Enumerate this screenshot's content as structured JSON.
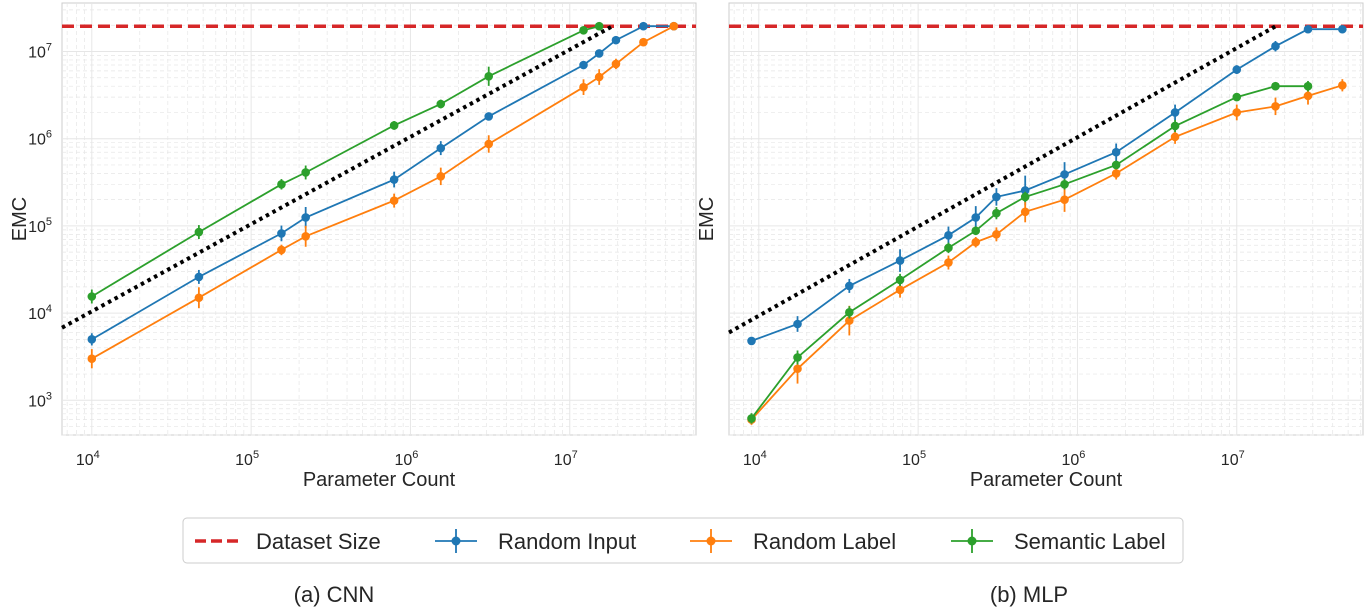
{
  "colors": {
    "dataset": "#d62728",
    "random_input": "#1f77b4",
    "random_label": "#ff7f0e",
    "semantic_label": "#2ca02c",
    "reference": "#000000",
    "grid": "#e6e6e6",
    "frame": "#cccccc"
  },
  "legend": {
    "dataset_size": "Dataset Size",
    "random_input": "Random Input",
    "random_label": "Random Label",
    "semantic_label": "Semantic Label"
  },
  "chart_data": [
    {
      "type": "line",
      "caption": "(a) CNN",
      "xlabel": "Parameter Count",
      "ylabel": "EMC",
      "x_scale": "log",
      "y_scale": "log",
      "xlim": [
        6500,
        62000000
      ],
      "ylim": [
        400,
        36000000
      ],
      "xticks": [
        {
          "value": 10000,
          "mant": "10",
          "exp": "4"
        },
        {
          "value": 100000,
          "mant": "10",
          "exp": "5"
        },
        {
          "value": 1000000,
          "mant": "10",
          "exp": "6"
        },
        {
          "value": 10000000,
          "mant": "10",
          "exp": "7"
        }
      ],
      "yticks": [
        {
          "value": 1000,
          "mant": "10",
          "exp": "3"
        },
        {
          "value": 10000,
          "mant": "10",
          "exp": "4"
        },
        {
          "value": 100000,
          "mant": "10",
          "exp": "5"
        },
        {
          "value": 1000000,
          "mant": "10",
          "exp": "6"
        },
        {
          "value": 10000000,
          "mant": "10",
          "exp": "7"
        }
      ],
      "dataset_size": 19500000,
      "reference_line": [
        [
          6500,
          6800
        ],
        [
          19000000,
          20000000
        ]
      ],
      "series": [
        {
          "name": "Random Input",
          "x": [
            10000,
            47000,
            155000,
            220000,
            790000,
            1550000,
            3100000,
            12200000,
            15300000,
            19500000,
            29000000,
            45000000
          ],
          "y": [
            5000,
            26000,
            82000,
            125000,
            340000,
            780000,
            1800000,
            7000000,
            9500000,
            13500000,
            19500000,
            19500000
          ],
          "err": [
            0.07,
            0.08,
            0.09,
            0.12,
            0.09,
            0.08,
            0.03,
            0.03,
            0.03,
            0.03,
            0.02,
            0.02
          ]
        },
        {
          "name": "Random Label",
          "x": [
            10000,
            47000,
            155000,
            220000,
            790000,
            1550000,
            3100000,
            12200000,
            15300000,
            19500000,
            29000000,
            45000000
          ],
          "y": [
            3000,
            15000,
            53000,
            76000,
            195000,
            370000,
            870000,
            3900000,
            5100000,
            7200000,
            12800000,
            19500000
          ],
          "err": [
            0.11,
            0.12,
            0.06,
            0.12,
            0.08,
            0.1,
            0.1,
            0.09,
            0.09,
            0.06,
            0.04,
            0.02
          ]
        },
        {
          "name": "Semantic Label",
          "x": [
            10000,
            47000,
            155000,
            220000,
            790000,
            1550000,
            3100000,
            12200000,
            15300000
          ],
          "y": [
            15500,
            85000,
            300000,
            410000,
            1420000,
            2500000,
            5200000,
            17500000,
            19500000
          ],
          "err": [
            0.08,
            0.08,
            0.06,
            0.08,
            0.05,
            0.05,
            0.11,
            0.04,
            0.02
          ]
        }
      ]
    },
    {
      "type": "line",
      "caption": "(b) MLP",
      "xlabel": "Parameter Count",
      "ylabel": "EMC",
      "x_scale": "log",
      "y_scale": "log",
      "xlim": [
        6500,
        62000000
      ],
      "ylim": [
        400,
        36000000
      ],
      "xticks": [
        {
          "value": 10000,
          "mant": "10",
          "exp": "4"
        },
        {
          "value": 100000,
          "mant": "10",
          "exp": "5"
        },
        {
          "value": 1000000,
          "mant": "10",
          "exp": "6"
        },
        {
          "value": 10000000,
          "mant": "10",
          "exp": "7"
        }
      ],
      "yticks": [],
      "dataset_size": 19500000,
      "reference_line": [
        [
          6500,
          6000
        ],
        [
          18000000,
          20000000
        ]
      ],
      "series": [
        {
          "name": "Random Input",
          "x": [
            9000,
            17500,
            37000,
            77000,
            155000,
            230000,
            310000,
            470000,
            830000,
            1750000,
            4100000,
            10000000,
            17500000,
            28000000,
            46000000
          ],
          "y": [
            4800,
            7500,
            20500,
            40000,
            78000,
            125000,
            215000,
            255000,
            390000,
            700000,
            2000000,
            6200000,
            11500000,
            18000000,
            18000000
          ],
          "err": [
            0.03,
            0.09,
            0.08,
            0.13,
            0.1,
            0.13,
            0.1,
            0.17,
            0.14,
            0.1,
            0.09,
            0.05,
            0.06,
            0.03,
            0.03
          ]
        },
        {
          "name": "Random Label",
          "x": [
            9000,
            17500,
            37000,
            77000,
            155000,
            230000,
            310000,
            470000,
            830000,
            1750000,
            4100000,
            10000000,
            17500000,
            28000000,
            46000000
          ],
          "y": [
            600,
            2300,
            8200,
            18500,
            38000,
            65000,
            80000,
            145000,
            200000,
            400000,
            1050000,
            2000000,
            2350000,
            3100000,
            4100000
          ],
          "err": [
            0.06,
            0.17,
            0.17,
            0.09,
            0.08,
            0.06,
            0.08,
            0.12,
            0.14,
            0.07,
            0.08,
            0.09,
            0.1,
            0.1,
            0.07
          ]
        },
        {
          "name": "Semantic Label",
          "x": [
            9000,
            17500,
            37000,
            77000,
            155000,
            230000,
            310000,
            470000,
            830000,
            1750000,
            4100000,
            10000000,
            17500000,
            28000000
          ],
          "y": [
            620,
            3100,
            10200,
            24000,
            56000,
            88000,
            140000,
            215000,
            300000,
            500000,
            1400000,
            3000000,
            4000000,
            4000000
          ],
          "err": [
            0.06,
            0.08,
            0.07,
            0.07,
            0.06,
            0.05,
            0.07,
            0.06,
            0.06,
            0.05,
            0.07,
            0.04,
            0.04,
            0.06
          ]
        }
      ]
    }
  ]
}
